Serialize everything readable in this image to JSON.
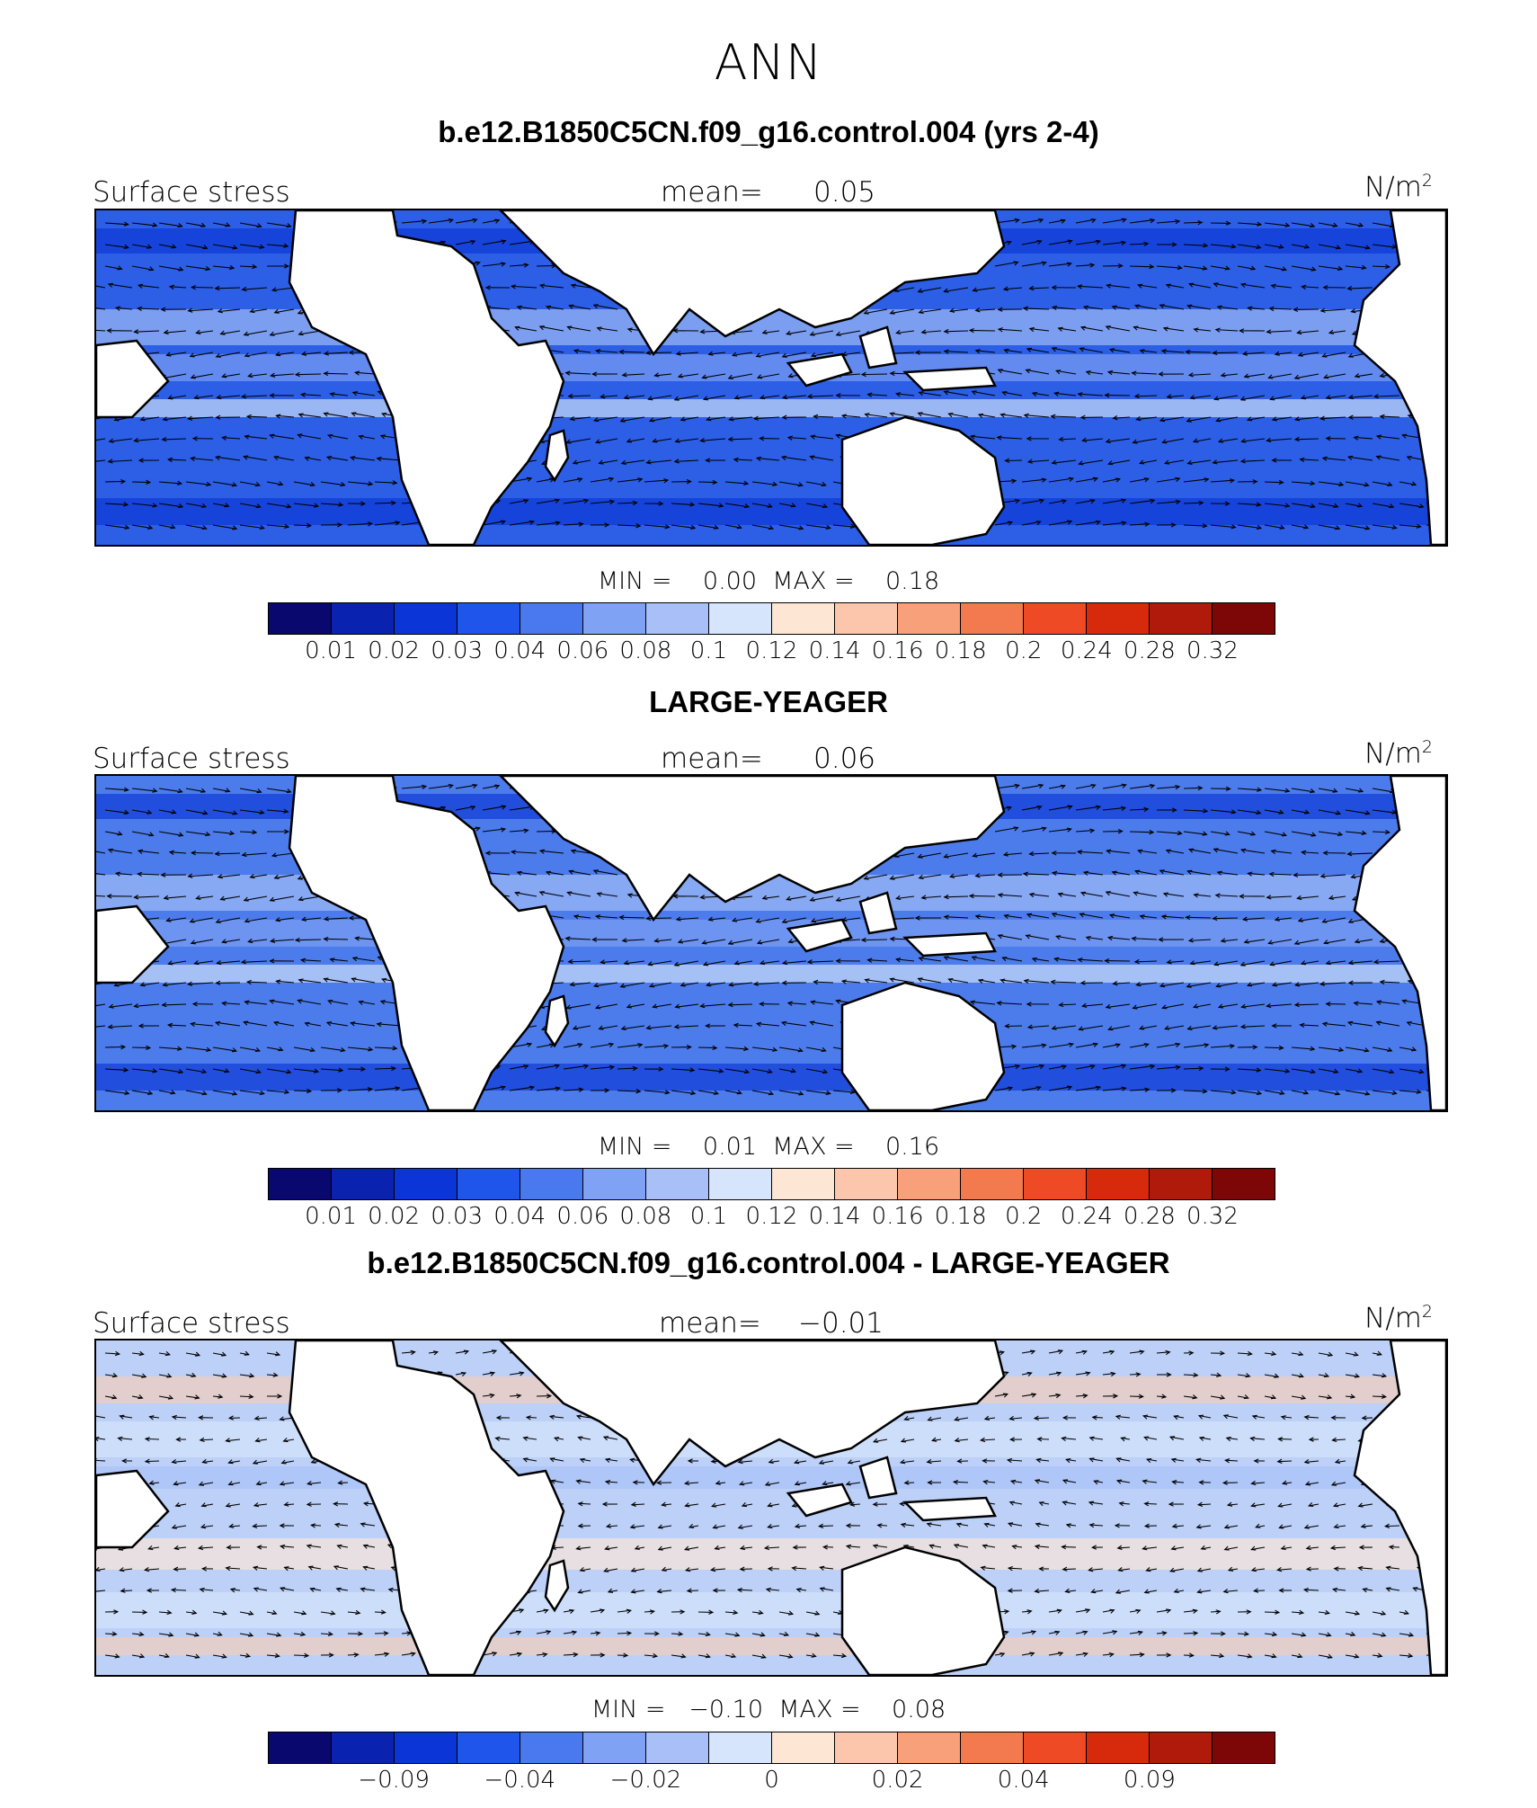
{
  "main_title": "ANN",
  "colors": [
    "#08086e",
    "#0a22b0",
    "#0b35d6",
    "#1f55ea",
    "#4a78ee",
    "#7fa2f4",
    "#a8c0f7",
    "#d6e5fb",
    "#fde6d4",
    "#fbc6ab",
    "#f7a07a",
    "#f3794f",
    "#ee4a25",
    "#d72a0c",
    "#af1a0a",
    "#7d0707"
  ],
  "panels": [
    {
      "title": "b.e12.B1850C5CN.f09_g16.control.004 (yrs 2-4)",
      "left_label": "Surface stress",
      "mean_label": "mean=",
      "mean_value": "0.05",
      "units": "N/m",
      "units_sup": "2",
      "min_label": "MIN =",
      "min_value": "0.00",
      "max_label": "MAX =",
      "max_value": "0.18",
      "colorbar_ticks": [
        "0.01",
        "0.02",
        "0.03",
        "0.04",
        "0.06",
        "0.08",
        "0.1",
        "0.12",
        "0.14",
        "0.16",
        "0.18",
        "0.2",
        "0.24",
        "0.28",
        "0.32"
      ],
      "ocean_tone": "#2c5fe6"
    },
    {
      "title": "LARGE-YEAGER",
      "left_label": "Surface stress",
      "mean_label": "mean=",
      "mean_value": "0.06",
      "units": "N/m",
      "units_sup": "2",
      "min_label": "MIN =",
      "min_value": "0.01",
      "max_label": "MAX =",
      "max_value": "0.16",
      "colorbar_ticks": [
        "0.01",
        "0.02",
        "0.03",
        "0.04",
        "0.06",
        "0.08",
        "0.1",
        "0.12",
        "0.14",
        "0.16",
        "0.18",
        "0.2",
        "0.24",
        "0.28",
        "0.32"
      ],
      "ocean_tone": "#4c7cec"
    },
    {
      "title": "b.e12.B1850C5CN.f09_g16.control.004 - LARGE-YEAGER",
      "left_label": "Surface stress",
      "mean_label": "mean=",
      "mean_value": "−0.01",
      "units": "N/m",
      "units_sup": "2",
      "min_label": "MIN =",
      "min_value": "−0.10",
      "max_label": "MAX =",
      "max_value": "0.08",
      "colorbar_ticks": [
        "−0.09",
        "−0.04",
        "−0.02",
        "0",
        "0.02",
        "0.04",
        "0.09"
      ],
      "ocean_tone": "#bcd0f8"
    }
  ]
}
